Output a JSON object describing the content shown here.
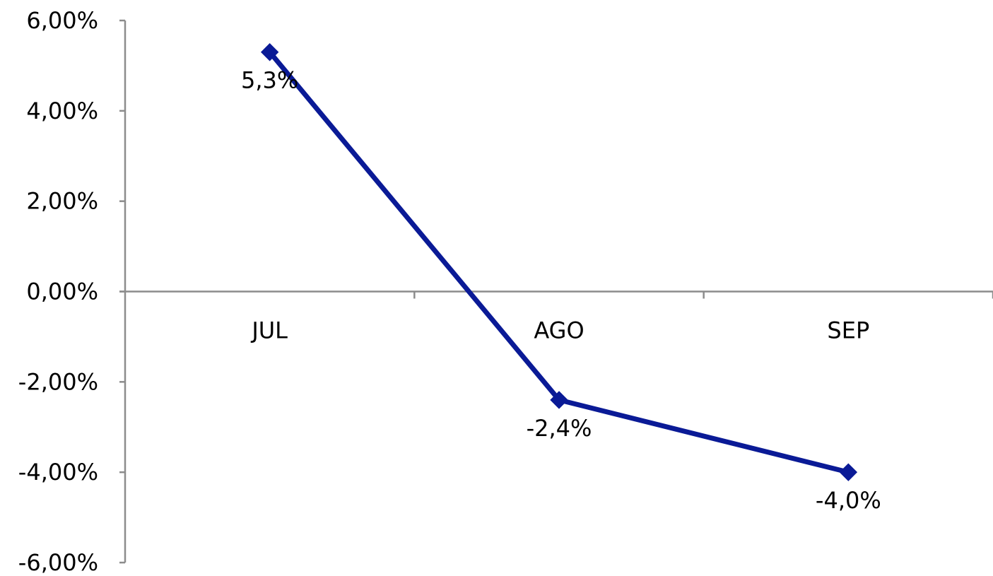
{
  "chart_data": {
    "type": "line",
    "title": "",
    "xlabel": "",
    "ylabel": "",
    "categories": [
      "JUL",
      "AGO",
      "SEP"
    ],
    "series": [
      {
        "values": [
          5.3,
          -2.4,
          -4.0
        ],
        "data_labels": [
          "5,3%",
          "-2,4%",
          "-4,0%"
        ],
        "color": "#0A1A96",
        "marker": "diamond"
      }
    ],
    "ylim": [
      -6,
      6
    ],
    "y_ticks": [
      6,
      4,
      2,
      0,
      -2,
      -4,
      -6
    ],
    "y_tick_labels": [
      "6,00%",
      "4,00%",
      "2,00%",
      "0,00%",
      "-2,00%",
      "-4,00%",
      "-6,00%"
    ],
    "grid": false,
    "legend": "none",
    "axis_color": "#8C8C8C"
  }
}
